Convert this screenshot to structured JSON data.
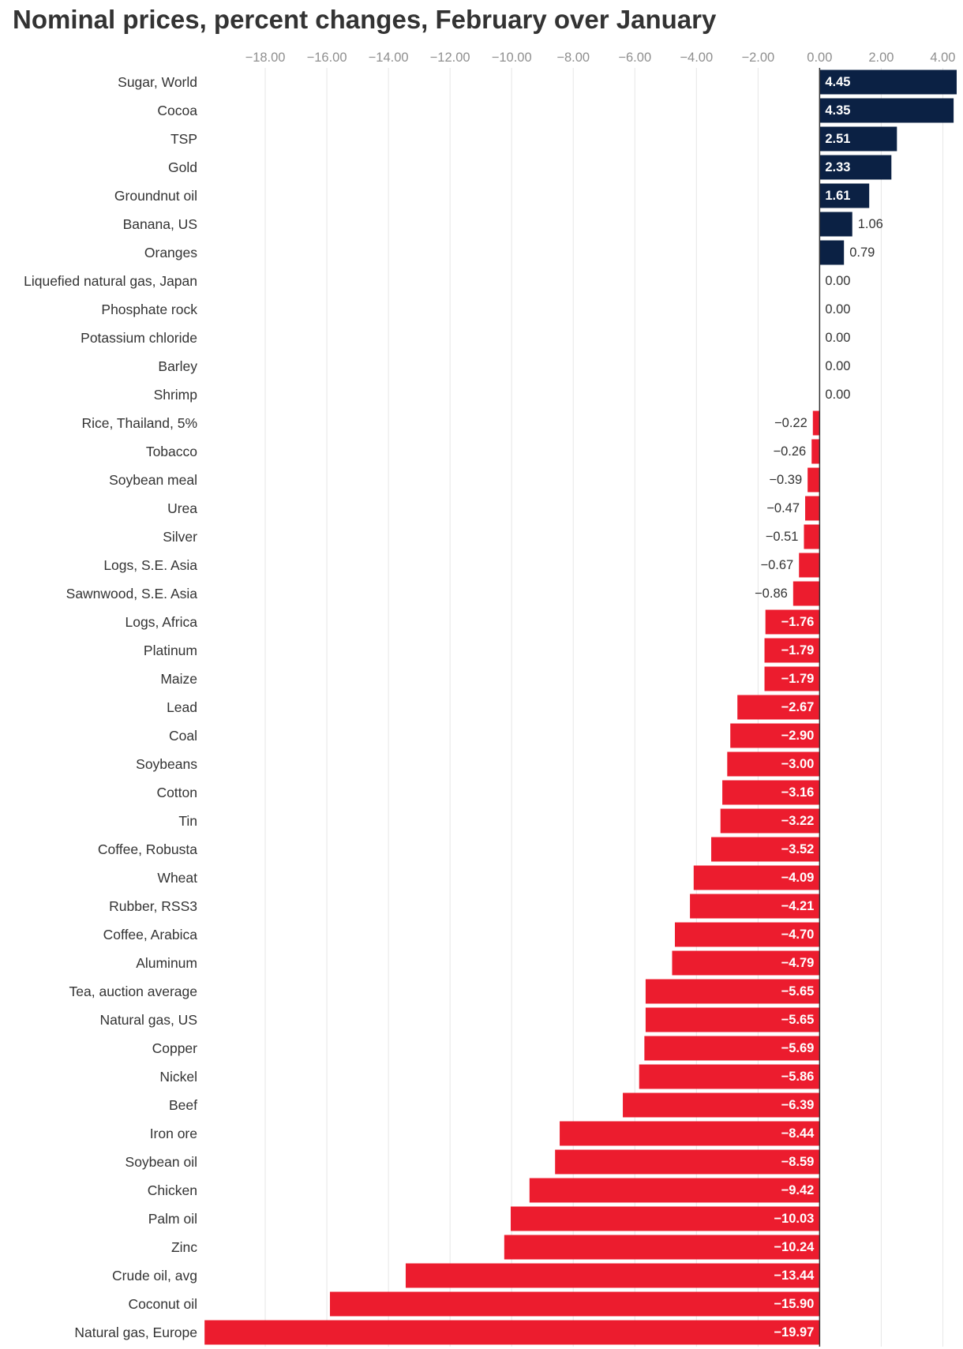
{
  "chart_data": {
    "type": "bar",
    "orientation": "horizontal",
    "title": "Nominal prices, percent changes, February over January",
    "xlabel": "",
    "ylabel": "",
    "xlim": [
      -20,
      4.45
    ],
    "xticks": [
      -18,
      -16,
      -14,
      -12,
      -10,
      -8,
      -6,
      -4,
      -2,
      0,
      2,
      4
    ],
    "xtick_labels": [
      "−18.00",
      "−16.00",
      "−14.00",
      "−12.00",
      "−10.00",
      "−8.00",
      "−6.00",
      "−4.00",
      "−2.00",
      "0.00",
      "2.00",
      "4.00"
    ],
    "x_axis_position": "top",
    "grid": true,
    "colors": {
      "positive": "#0b2144",
      "negative": "#ec1c2e"
    },
    "categories": [
      "Sugar, World",
      "Cocoa",
      "TSP",
      "Gold",
      "Groundnut oil",
      "Banana, US",
      "Oranges",
      "Liquefied natural gas, Japan",
      "Phosphate rock",
      "Potassium chloride",
      "Barley",
      "Shrimp",
      "Rice, Thailand, 5%",
      "Tobacco",
      "Soybean meal",
      "Urea",
      "Silver",
      "Logs, S.E. Asia",
      "Sawnwood, S.E. Asia",
      "Logs, Africa",
      "Platinum",
      "Maize",
      "Lead",
      "Coal",
      "Soybeans",
      "Cotton",
      "Tin",
      "Coffee, Robusta",
      "Wheat",
      "Rubber, RSS3",
      "Coffee, Arabica",
      "Aluminum",
      "Tea, auction average",
      "Natural gas, US",
      "Copper",
      "Nickel",
      "Beef",
      "Iron ore",
      "Soybean oil",
      "Chicken",
      "Palm oil",
      "Zinc",
      "Crude oil, avg",
      "Coconut oil",
      "Natural gas, Europe"
    ],
    "values": [
      4.45,
      4.35,
      2.51,
      2.33,
      1.61,
      1.06,
      0.79,
      0.0,
      0.0,
      0.0,
      0.0,
      0.0,
      -0.22,
      -0.26,
      -0.39,
      -0.47,
      -0.51,
      -0.67,
      -0.86,
      -1.76,
      -1.79,
      -1.79,
      -2.67,
      -2.9,
      -3.0,
      -3.16,
      -3.22,
      -3.52,
      -4.09,
      -4.21,
      -4.7,
      -4.79,
      -5.65,
      -5.65,
      -5.69,
      -5.86,
      -6.39,
      -8.44,
      -8.59,
      -9.42,
      -10.03,
      -10.24,
      -13.44,
      -15.9,
      -19.97
    ],
    "value_labels": [
      "4.45",
      "4.35",
      "2.51",
      "2.33",
      "1.61",
      "1.06",
      "0.79",
      "0.00",
      "0.00",
      "0.00",
      "0.00",
      "0.00",
      "−0.22",
      "−0.26",
      "−0.39",
      "−0.47",
      "−0.51",
      "−0.67",
      "−0.86",
      "−1.76",
      "−1.79",
      "−1.79",
      "−2.67",
      "−2.90",
      "−3.00",
      "−3.16",
      "−3.22",
      "−3.52",
      "−4.09",
      "−4.21",
      "−4.70",
      "−4.79",
      "−5.65",
      "−5.65",
      "−5.69",
      "−5.86",
      "−6.39",
      "−8.44",
      "−8.59",
      "−9.42",
      "−10.03",
      "−10.24",
      "−13.44",
      "−15.90",
      "−19.97"
    ]
  }
}
